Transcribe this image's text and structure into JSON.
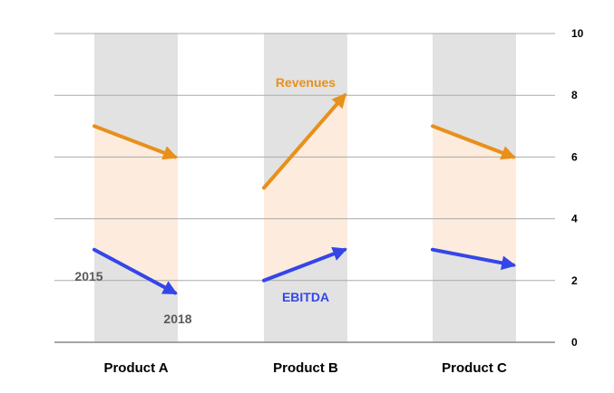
{
  "chart_data": {
    "type": "slope",
    "title": "",
    "xlabel": "",
    "ylabel": "",
    "ylim": [
      0,
      10
    ],
    "yticks": [
      "0",
      "2",
      "4",
      "6",
      "8",
      "10"
    ],
    "categories": [
      "Product A",
      "Product B",
      "Product C"
    ],
    "periods": [
      "2015",
      "2018"
    ],
    "grid": true,
    "series": [
      {
        "name": "Revenues",
        "color": "#E8901A",
        "start": [
          7.0,
          5.0,
          7.0
        ],
        "end": [
          6.0,
          8.0,
          6.0
        ]
      },
      {
        "name": "EBITDA",
        "color": "#3446E8",
        "start": [
          3.0,
          2.0,
          3.0
        ],
        "end": [
          1.6,
          3.0,
          2.5
        ]
      }
    ],
    "colors": {
      "column_band": "#E2E2E2",
      "fill_between": "#FDEBDD",
      "gridline": "#AAAAAA",
      "axis": "#888888",
      "text": "#000000",
      "annotation_text": "#5A5A5A"
    },
    "annotations": {
      "start_label": "2015",
      "end_label": "2018",
      "revenues_label": "Revenues",
      "ebitda_label": "EBITDA"
    }
  }
}
